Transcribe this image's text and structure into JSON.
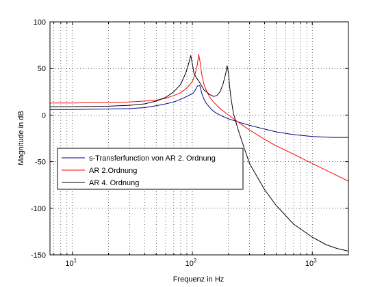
{
  "chart_data": {
    "type": "line",
    "xlabel": "Frequenz in Hz",
    "ylabel": "Magnitude in dB",
    "xscale": "log",
    "xlim": [
      6.5,
      2000
    ],
    "ylim": [
      -150,
      100
    ],
    "xticks": [
      {
        "base": "10",
        "exp": "1",
        "value": 10
      },
      {
        "base": "10",
        "exp": "2",
        "value": 100
      },
      {
        "base": "10",
        "exp": "3",
        "value": 1000
      }
    ],
    "yticks": [
      "100",
      "50",
      "0",
      "-50",
      "-100",
      "-150"
    ],
    "grid": "dotted, major and minor",
    "legend_position": "lower-left",
    "series": [
      {
        "name": "s-Transferfunction von AR 2. Ordnung",
        "color": "#00008b",
        "x": [
          6.5,
          10,
          20,
          30,
          40,
          50,
          60,
          70,
          80,
          90,
          100,
          105,
          110,
          115,
          120,
          125,
          130,
          140,
          150,
          170,
          200,
          250,
          300,
          400,
          500,
          700,
          1000,
          1500,
          2000
        ],
        "y": [
          6,
          6,
          6.5,
          7,
          8,
          10,
          12,
          14,
          17,
          20,
          23,
          26,
          31,
          32,
          23,
          17,
          13,
          8,
          4,
          0,
          -4,
          -8,
          -11,
          -15,
          -18,
          -21,
          -23,
          -24,
          -24
        ]
      },
      {
        "name": "AR 2.Ordnung",
        "color": "#ff0000",
        "x": [
          6.5,
          10,
          20,
          30,
          40,
          50,
          60,
          70,
          80,
          90,
          100,
          105,
          110,
          113,
          116,
          120,
          125,
          130,
          140,
          150,
          170,
          200,
          250,
          300,
          400,
          500,
          700,
          1000,
          1500,
          2000
        ],
        "y": [
          13,
          13,
          13.5,
          14,
          15,
          16,
          18,
          21,
          24,
          29,
          36,
          43,
          54,
          65,
          57,
          43,
          33,
          27,
          19,
          14,
          7,
          0,
          -9,
          -16,
          -26,
          -33,
          -42,
          -52,
          -63,
          -71
        ]
      },
      {
        "name": "AR 4. Ordnung",
        "color": "#000000",
        "x": [
          6.5,
          10,
          20,
          30,
          40,
          50,
          60,
          70,
          80,
          88,
          94,
          97,
          100,
          103,
          108,
          115,
          125,
          140,
          150,
          160,
          170,
          180,
          190,
          195,
          200,
          205,
          210,
          220,
          240,
          270,
          300,
          400,
          500,
          700,
          1000,
          1300,
          1600,
          2000
        ],
        "y": [
          9,
          9,
          9.5,
          10.5,
          12,
          15,
          19,
          25,
          33,
          45,
          57,
          64,
          55,
          45,
          40,
          35,
          27,
          22,
          20,
          21,
          25,
          33,
          45,
          53,
          45,
          30,
          18,
          2,
          -15,
          -35,
          -52,
          -80,
          -97,
          -117,
          -131,
          -139,
          -143,
          -146
        ]
      }
    ]
  }
}
